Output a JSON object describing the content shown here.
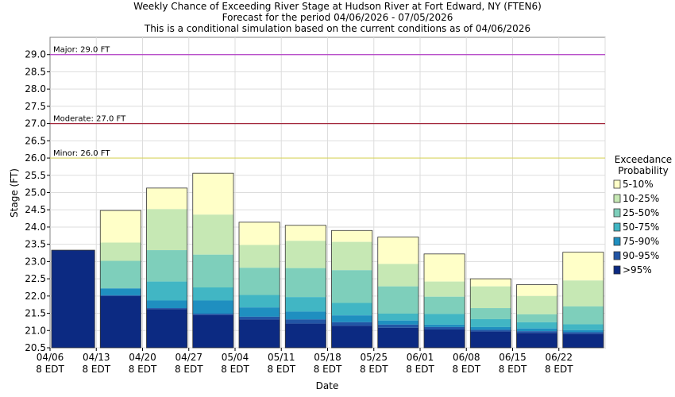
{
  "chart_data": {
    "type": "bar",
    "title_lines": [
      "Weekly Chance of Exceeding River Stage at Hudson River at Fort Edward, NY (FTEN6)",
      "Forecast for the period 04/06/2026 - 07/05/2026",
      "This is a conditional simulation based on the current conditions as of 04/06/2026"
    ],
    "xlabel": "Date",
    "ylabel": "Stage (FT)",
    "ylim": [
      20.5,
      29.5
    ],
    "yticks": [
      20.5,
      21.0,
      21.5,
      22.0,
      22.5,
      23.0,
      23.5,
      24.0,
      24.5,
      25.0,
      25.5,
      26.0,
      26.5,
      27.0,
      27.5,
      28.0,
      28.5,
      29.0
    ],
    "ytick_labels": [
      "20.5",
      "21.0",
      "21.5",
      "22.0",
      "22.5",
      "23.0",
      "23.5",
      "24.0",
      "24.5",
      "25.0",
      "25.5",
      "26.0",
      "26.5",
      "27.0",
      "27.5",
      "28.0",
      "28.5",
      "29.0"
    ],
    "xtick_dates": [
      "04/06",
      "04/13",
      "04/20",
      "04/27",
      "05/04",
      "05/11",
      "05/18",
      "05/25",
      "06/01",
      "06/08",
      "06/15",
      "06/22"
    ],
    "xtick_sub": "8 EDT",
    "grid": true,
    "thresholds": [
      {
        "label": "Major: 29.0 FT",
        "value": 29.0,
        "color": "#b03ac4"
      },
      {
        "label": "Moderate: 27.0 FT",
        "value": 27.0,
        "color": "#a3283c"
      },
      {
        "label": "Minor: 26.0 FT",
        "value": 26.0,
        "color": "#d8d460"
      }
    ],
    "legend": {
      "title_lines": [
        "Exceedance",
        "Probability"
      ],
      "placement": "right",
      "entries": [
        {
          "label": "5-10%",
          "color": "#ffffc8"
        },
        {
          "label": "10-25%",
          "color": "#c6e8b4"
        },
        {
          "label": "25-50%",
          "color": "#7ecfbb"
        },
        {
          "label": "50-75%",
          "color": "#41b6c4"
        },
        {
          "label": "75-90%",
          "color": "#1f8fc0"
        },
        {
          "label": "90-95%",
          "color": "#2255a5"
        },
        {
          "label": ">95%",
          "color": "#0c2a82"
        }
      ]
    },
    "weeks": [
      {
        "date": "04/06",
        "levels": [
          23.33,
          23.33,
          23.33,
          23.33,
          23.33,
          23.33,
          23.33,
          23.33
        ]
      },
      {
        "date": "04/13",
        "levels": [
          24.48,
          23.55,
          23.02,
          22.22,
          22.22,
          22.02,
          22.0,
          22.0
        ]
      },
      {
        "date": "04/20",
        "levels": [
          25.13,
          24.52,
          23.33,
          22.42,
          21.87,
          21.65,
          21.62,
          21.62
        ]
      },
      {
        "date": "04/27",
        "levels": [
          25.56,
          24.36,
          23.2,
          22.25,
          21.87,
          21.49,
          21.45,
          21.45
        ]
      },
      {
        "date": "05/04",
        "levels": [
          24.14,
          23.48,
          22.82,
          22.03,
          21.67,
          21.4,
          21.32,
          21.32
        ]
      },
      {
        "date": "05/11",
        "levels": [
          24.05,
          23.6,
          22.81,
          21.97,
          21.55,
          21.32,
          21.2,
          21.2
        ]
      },
      {
        "date": "05/18",
        "levels": [
          23.9,
          23.57,
          22.75,
          21.8,
          21.44,
          21.24,
          21.14,
          21.14
        ]
      },
      {
        "date": "05/25",
        "levels": [
          23.71,
          22.93,
          22.28,
          21.49,
          21.29,
          21.17,
          21.08,
          21.08
        ]
      },
      {
        "date": "06/01",
        "levels": [
          23.22,
          22.42,
          21.98,
          21.48,
          21.17,
          21.1,
          21.03,
          21.03
        ]
      },
      {
        "date": "06/08",
        "levels": [
          22.5,
          22.28,
          21.65,
          21.33,
          21.1,
          21.02,
          20.97,
          20.97
        ]
      },
      {
        "date": "06/15",
        "levels": [
          22.33,
          22.0,
          21.47,
          21.24,
          21.06,
          20.98,
          20.93,
          20.93
        ]
      },
      {
        "date": "06/22",
        "levels": [
          23.27,
          22.45,
          21.7,
          21.18,
          21.01,
          20.95,
          20.9,
          20.9
        ]
      }
    ]
  }
}
